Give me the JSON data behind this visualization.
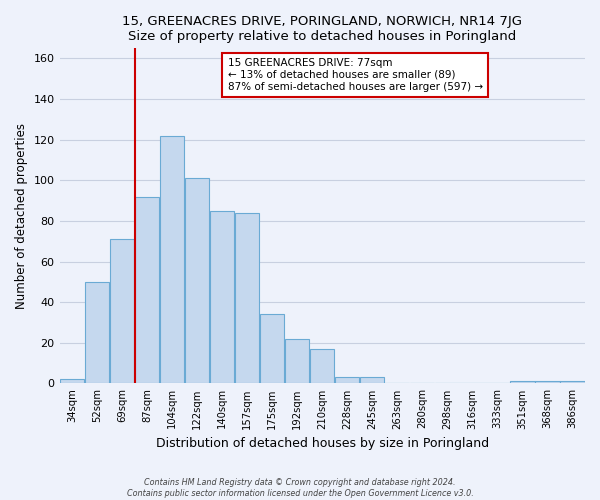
{
  "title": "15, GREENACRES DRIVE, PORINGLAND, NORWICH, NR14 7JG",
  "subtitle": "Size of property relative to detached houses in Poringland",
  "xlabel": "Distribution of detached houses by size in Poringland",
  "ylabel": "Number of detached properties",
  "bar_labels": [
    "34sqm",
    "52sqm",
    "69sqm",
    "87sqm",
    "104sqm",
    "122sqm",
    "140sqm",
    "157sqm",
    "175sqm",
    "192sqm",
    "210sqm",
    "228sqm",
    "245sqm",
    "263sqm",
    "280sqm",
    "298sqm",
    "316sqm",
    "333sqm",
    "351sqm",
    "368sqm",
    "386sqm"
  ],
  "bar_values": [
    2,
    50,
    71,
    92,
    122,
    101,
    85,
    84,
    34,
    22,
    17,
    3,
    3,
    0,
    0,
    0,
    0,
    0,
    1,
    1,
    1
  ],
  "bar_color": "#c5d8ee",
  "bar_edge_color": "#6aaad4",
  "ylim": [
    0,
    165
  ],
  "yticks": [
    0,
    20,
    40,
    60,
    80,
    100,
    120,
    140,
    160
  ],
  "vline_x": 2.5,
  "vline_color": "#cc0000",
  "annotation_line1": "15 GREENACRES DRIVE: 77sqm",
  "annotation_line2": "← 13% of detached houses are smaller (89)",
  "annotation_line3": "87% of semi-detached houses are larger (597) →",
  "footer_line1": "Contains HM Land Registry data © Crown copyright and database right 2024.",
  "footer_line2": "Contains public sector information licensed under the Open Government Licence v3.0.",
  "background_color": "#eef2fb",
  "plot_background": "#eef2fb",
  "grid_color": "#c8d0e0"
}
